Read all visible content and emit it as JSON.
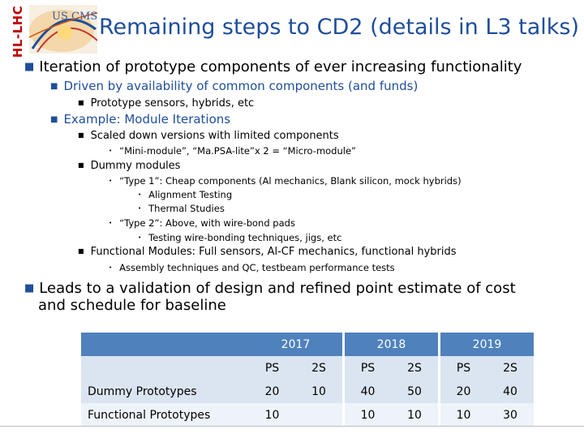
{
  "logo": {
    "vertical_text": "HL-LHC",
    "badge_text": "US CMS"
  },
  "title": "Remaining steps to CD2 (details in L3 talks)",
  "bullets": [
    {
      "level": 1,
      "text": "Iteration of prototype components of ever increasing functionality"
    },
    {
      "level": 2,
      "text": "Driven by availability of common components (and funds)"
    },
    {
      "level": 3,
      "text": "Prototype sensors, hybrids, etc"
    },
    {
      "level": 2,
      "text": "Example:  Module Iterations"
    },
    {
      "level": 3,
      "text": "Scaled down versions with limited components"
    },
    {
      "level": 4,
      "text": "“Mini-module”, “Ma.PSA-lite”x 2 = “Micro-module”"
    },
    {
      "level": 3,
      "text": "Dummy modules"
    },
    {
      "level": 4,
      "text": "“Type 1”:  Cheap components (Al mechanics, Blank silicon, mock hybrids)"
    },
    {
      "level": 5,
      "text": "Alignment Testing"
    },
    {
      "level": 5,
      "text": "Thermal Studies"
    },
    {
      "level": 4,
      "text": "“Type 2”: Above, with wire-bond pads"
    },
    {
      "level": 5,
      "text": "Testing wire-bonding techniques, jigs, etc"
    },
    {
      "level": 3,
      "text": "Functional Modules: Full sensors, Al-CF mechanics, functional hybrids"
    },
    {
      "level": 4,
      "text": "Assembly techniques and QC, testbeam performance tests"
    },
    {
      "level": 1,
      "text": "Leads to a validation of design and refined point estimate of cost"
    },
    {
      "level": 0,
      "text": "and schedule  for baseline"
    }
  ],
  "table": {
    "years": [
      "2017",
      "2018",
      "2019"
    ],
    "subcols": [
      "PS",
      "2S",
      "PS",
      "2S",
      "PS",
      "2S"
    ],
    "rows": [
      {
        "label": "Dummy Prototypes",
        "values": [
          "20",
          "10",
          "40",
          "50",
          "20",
          "40"
        ]
      },
      {
        "label": "Functional Prototypes",
        "values": [
          "10",
          "",
          "10",
          "10",
          "10",
          "30"
        ]
      }
    ]
  },
  "colors": {
    "title": "#1f4e9a",
    "bullet": "#1f4e9a",
    "table_header": "#4f81bd",
    "table_row": "#dbe5f1"
  }
}
